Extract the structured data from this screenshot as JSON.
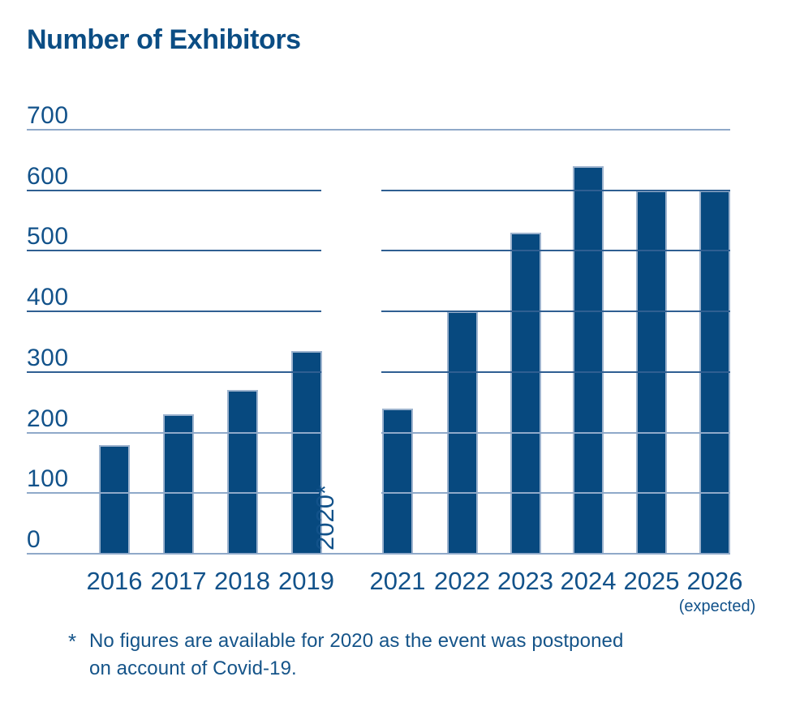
{
  "title": "Number of Exhibitors",
  "chart_data": {
    "type": "bar",
    "title": "Number of Exhibitors",
    "categories": [
      "2016",
      "2017",
      "2018",
      "2019",
      "2020",
      "2021",
      "2022",
      "2023",
      "2024",
      "2025",
      "2026"
    ],
    "x_tick_labels": [
      "2016",
      "2017",
      "2018",
      "2019",
      "2020*",
      "2021",
      "2022",
      "2023",
      "2024",
      "2025",
      "2026"
    ],
    "values": [
      180,
      230,
      270,
      335,
      null,
      240,
      400,
      530,
      640,
      600,
      600
    ],
    "missing_category": "2020",
    "missing_category_label": "2020*",
    "x_sub_label": {
      "category": "2026",
      "text": "(expected)"
    },
    "xlabel": "",
    "ylabel": "",
    "ylim": [
      0,
      700
    ],
    "yticks": [
      0,
      100,
      200,
      300,
      400,
      500,
      600,
      700
    ],
    "grid": "horizontal",
    "legend": "none"
  },
  "footnote": {
    "marker": "*",
    "line1": "No figures are available for 2020 as the event was postponed",
    "line2": "on account of Covid-19."
  },
  "colors": {
    "bar": "#07497f",
    "bar_edge": "#9db3ce",
    "text": "#12528a",
    "title_text": "#0b4d84",
    "grid_light": "#8fa9c9",
    "grid_dark": "#2f5f92",
    "background": "#ffffff"
  }
}
